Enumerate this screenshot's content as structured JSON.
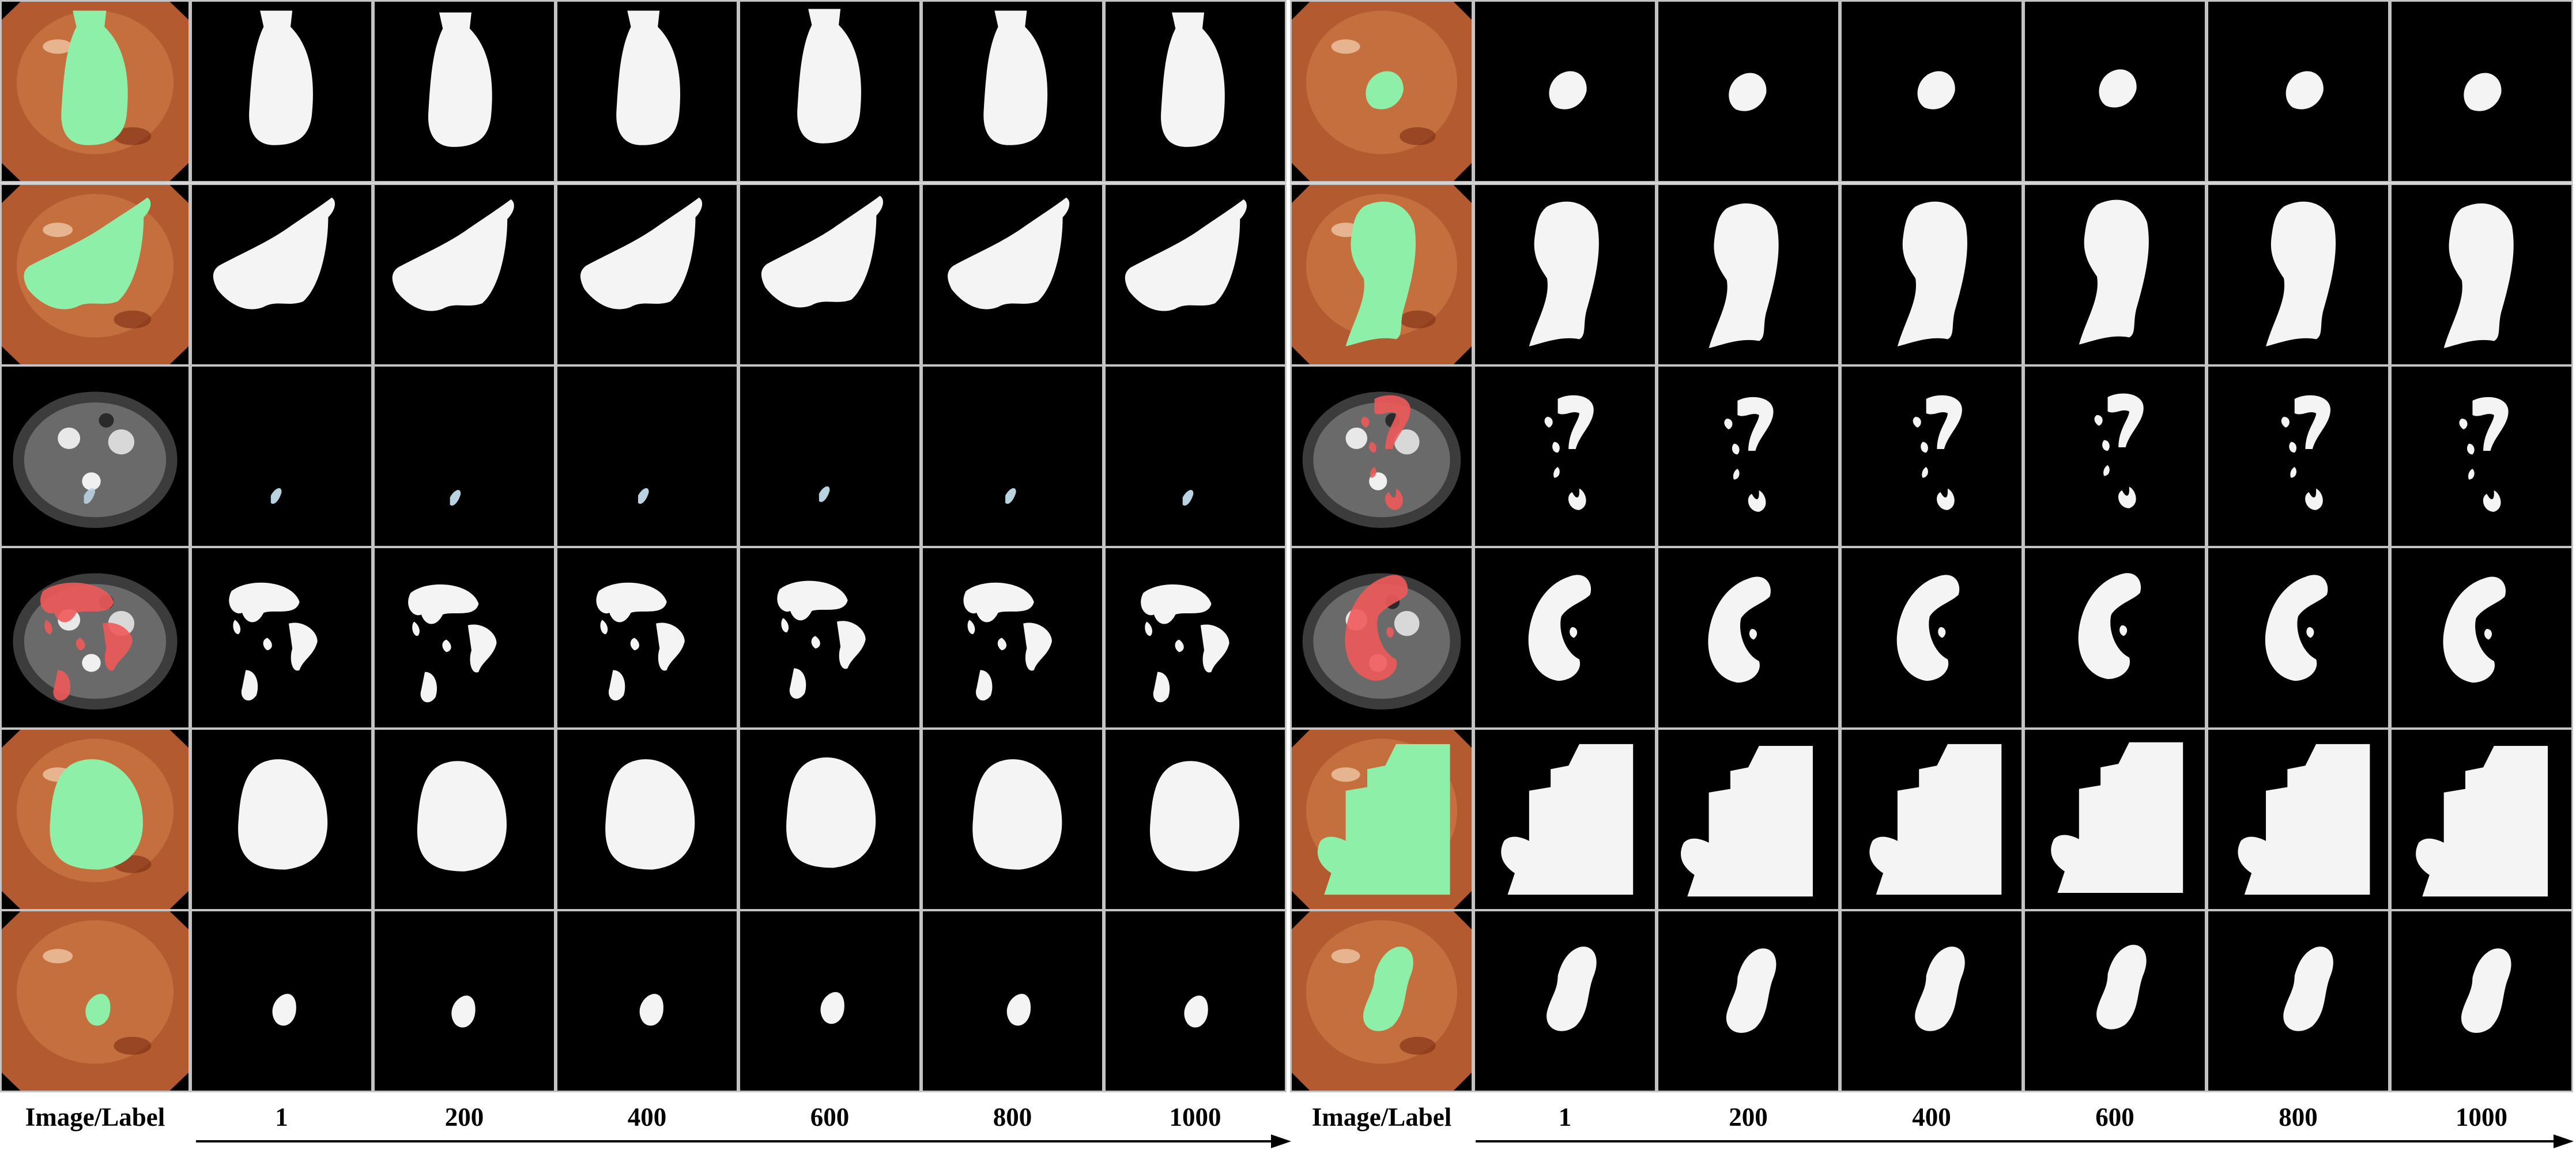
{
  "figure": {
    "left_panel": {
      "column_labels": [
        "Image/Label",
        "1",
        "200",
        "400",
        "600",
        "800",
        "1000"
      ],
      "rows": [
        {
          "image": "endoscopy-polyp-label-overlay",
          "overlay_color": "#8ef0a8",
          "mask_shape": "vase"
        },
        {
          "image": "endoscopy-polyp-label-overlay",
          "overlay_color": "#8ef0a8",
          "mask_shape": "leaf"
        },
        {
          "image": "abdominal-ct-label-overlay",
          "overlay_color": "#f05a5a",
          "mask_shape": "speck"
        },
        {
          "image": "abdominal-ct-label-overlay",
          "overlay_color": "#f05a5a",
          "mask_shape": "organ-cluster"
        },
        {
          "image": "endoscopy-polyp-label-overlay",
          "overlay_color": "#8ef0a8",
          "mask_shape": "blob"
        },
        {
          "image": "endoscopy-polyp-label-overlay",
          "overlay_color": "#8ef0a8",
          "mask_shape": "small-blob"
        }
      ]
    },
    "right_panel": {
      "column_labels": [
        "Image/Label",
        "1",
        "200",
        "400",
        "600",
        "800",
        "1000"
      ],
      "rows": [
        {
          "image": "endoscopy-polyp-label-overlay",
          "overlay_color": "#8ef0a8",
          "mask_shape": "round"
        },
        {
          "image": "endoscopy-polyp-label-overlay",
          "overlay_color": "#8ef0a8",
          "mask_shape": "comma"
        },
        {
          "image": "abdominal-ct-label-overlay",
          "overlay_color": "#f05a5a",
          "mask_shape": "fragments"
        },
        {
          "image": "abdominal-ct-label-overlay",
          "overlay_color": "#f05a5a",
          "mask_shape": "kidney"
        },
        {
          "image": "endoscopy-polyp-label-overlay",
          "overlay_color": "#8ef0a8",
          "mask_shape": "stepped"
        },
        {
          "image": "endoscopy-polyp-label-overlay",
          "overlay_color": "#8ef0a8",
          "mask_shape": "bean"
        }
      ]
    },
    "colors": {
      "mask": "#f4f4f4",
      "background": "#000000",
      "grid_line": "#c4c4c4",
      "overlay_green": "#8ef0a8",
      "overlay_red": "#f05a5a"
    }
  }
}
